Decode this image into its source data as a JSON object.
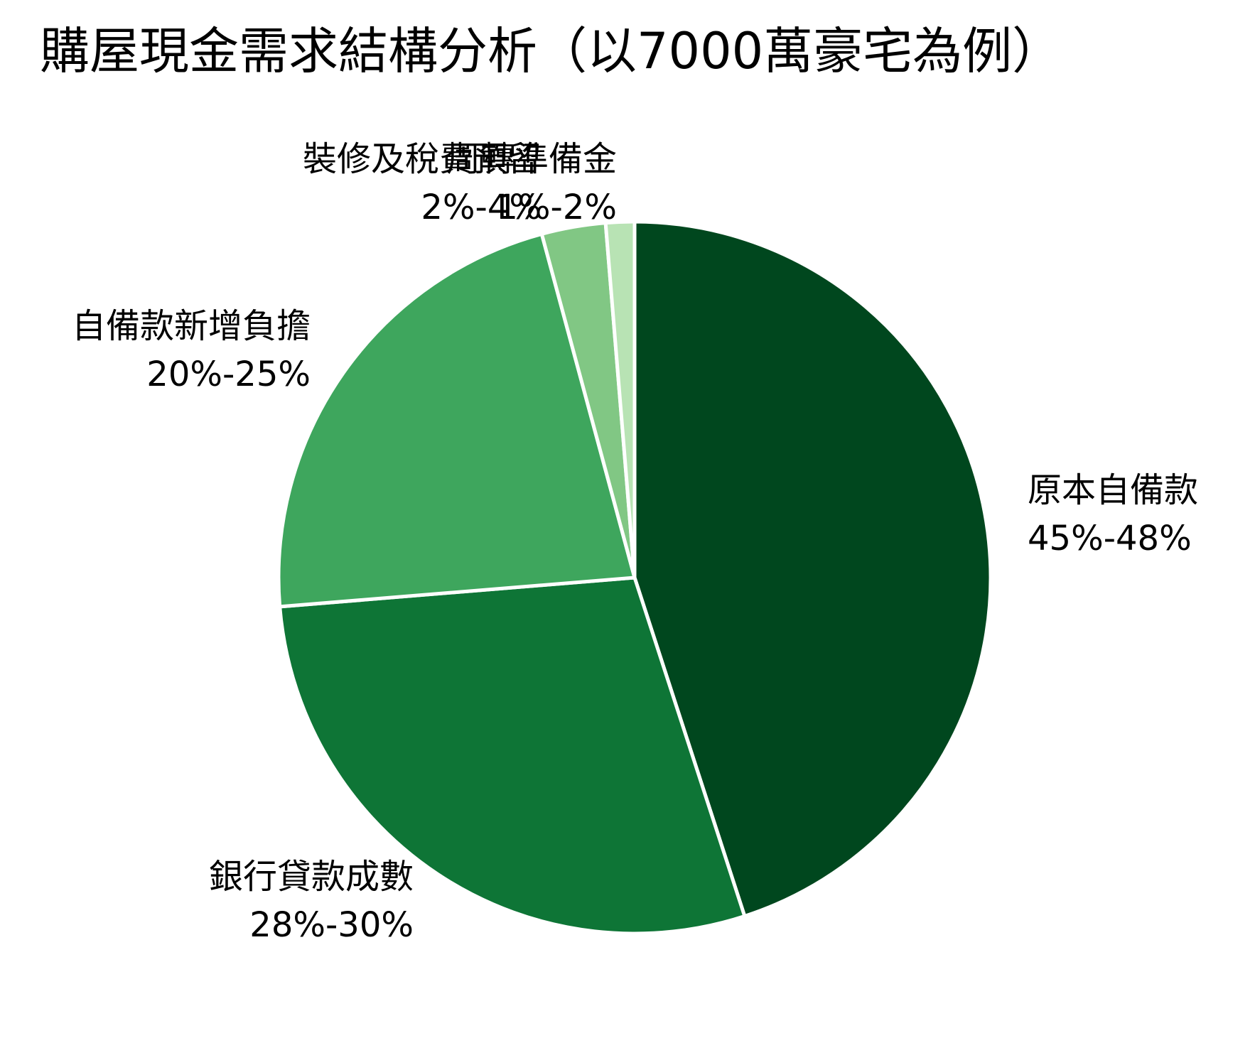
{
  "chart_data": {
    "type": "pie",
    "title": "購屋現金需求結構分析（以7000萬豪宅為例）",
    "start_angle_deg": 0,
    "direction": "clockwise",
    "slices": [
      {
        "label": "原本自備款",
        "range_label": "45%-48%",
        "value": 45.0,
        "color": "#00471e"
      },
      {
        "label": "銀行貸款成數",
        "range_label": "28%-30%",
        "value": 28.7,
        "color": "#0e7536"
      },
      {
        "label": "自備款新增負擔",
        "range_label": "20%-25%",
        "value": 22.1,
        "color": "#3ea65d"
      },
      {
        "label": "裝修及稅費預留",
        "range_label": "2%-4%",
        "value": 2.9,
        "color": "#81c784"
      },
      {
        "label": "周轉準備金",
        "range_label": "1%-2%",
        "value": 1.3,
        "color": "#b8e3b4"
      }
    ]
  }
}
